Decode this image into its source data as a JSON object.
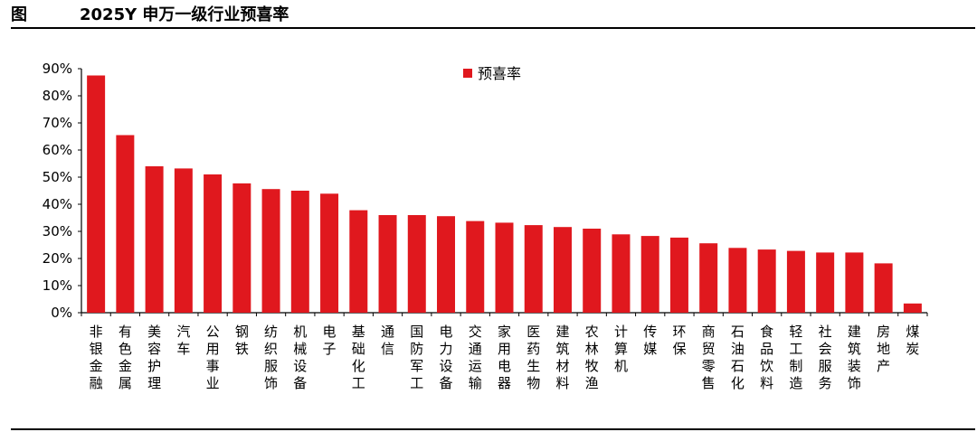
{
  "header": {
    "figure_label": "图",
    "title": "2025Y 申万一级行业预喜率"
  },
  "chart_data": {
    "type": "bar",
    "title": "2025Y 申万一级行业预喜率",
    "xlabel": "",
    "ylabel": "",
    "ylim": [
      0,
      90
    ],
    "yticks": [
      "0%",
      "10%",
      "20%",
      "30%",
      "40%",
      "50%",
      "60%",
      "70%",
      "80%",
      "90%"
    ],
    "grid": false,
    "legend_position": "top-center",
    "series_color": "#E0181E",
    "categories": [
      "非银金融",
      "有色金属",
      "美容护理",
      "汽车",
      "公用事业",
      "钢铁",
      "纺织服饰",
      "机械设备",
      "电子",
      "基础化工",
      "通信",
      "国防军工",
      "电力设备",
      "交通运输",
      "家用电器",
      "医药生物",
      "建筑材料",
      "农林牧渔",
      "计算机",
      "传媒",
      "环保",
      "商贸零售",
      "石油石化",
      "食品饮料",
      "轻工制造",
      "社会服务",
      "建筑装饰",
      "房地产",
      "煤炭"
    ],
    "series": [
      {
        "name": "预喜率",
        "values": [
          87.5,
          65.5,
          54,
          53.2,
          51,
          47.7,
          45.6,
          45,
          43.9,
          37.8,
          36,
          36,
          35.6,
          33.8,
          33.2,
          32.3,
          31.6,
          31,
          28.9,
          28.3,
          27.7,
          25.6,
          23.9,
          23.3,
          22.8,
          22.2,
          22.2,
          18.2,
          3.4
        ]
      }
    ]
  }
}
